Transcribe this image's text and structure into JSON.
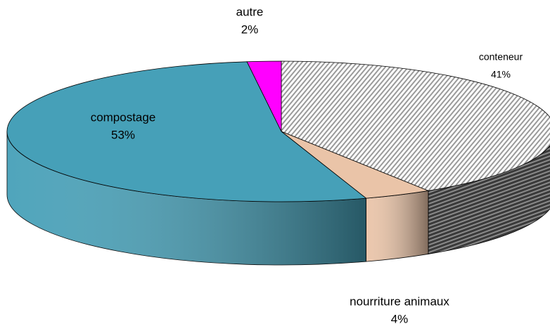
{
  "chart_data": {
    "type": "pie",
    "categories": [
      "conteneur",
      "nourriture animaux",
      "compostage",
      "autre"
    ],
    "values": [
      41,
      4,
      53,
      2
    ],
    "value_labels": [
      "41%",
      "4%",
      "53%",
      "2%"
    ],
    "colors": [
      "#d8d8d8",
      "#eac4a8",
      "#46a0b8",
      "#ff00ff"
    ],
    "hatch": [
      true,
      false,
      false,
      false
    ]
  }
}
